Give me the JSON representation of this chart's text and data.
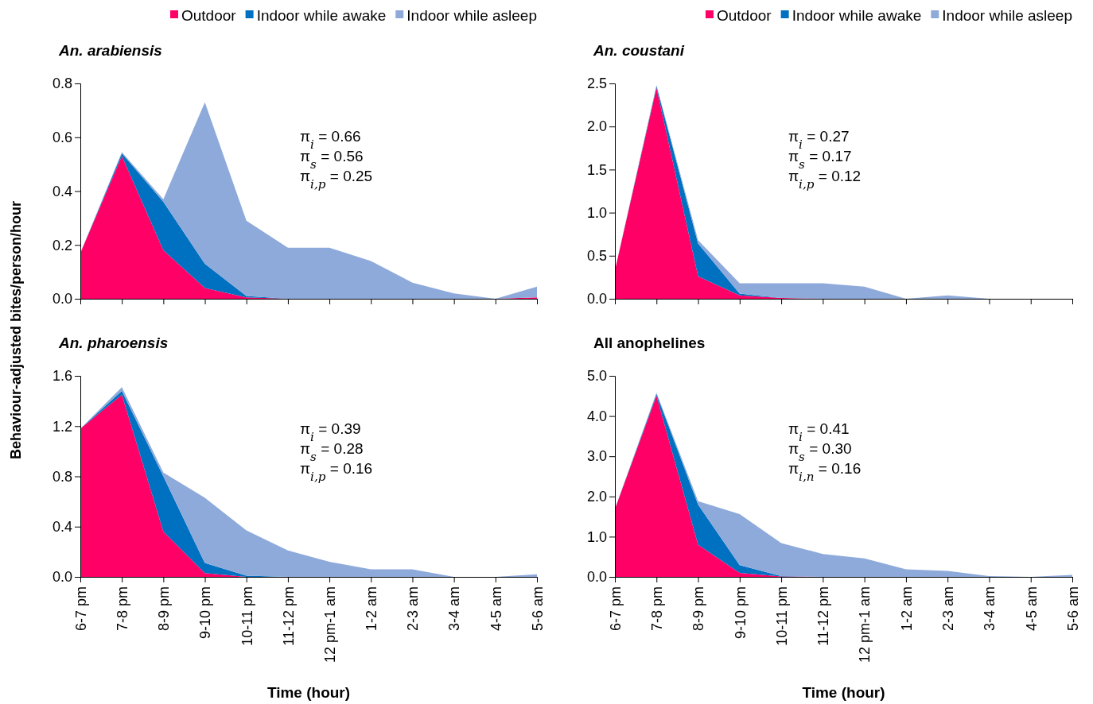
{
  "chart_data": [
    {
      "type": "area",
      "stacked": true,
      "title": "An. arabiensis",
      "ylabel": "Behaviour-adjusted bites/person/hour",
      "categories": [
        null,
        null,
        null,
        null,
        null,
        null,
        null,
        null,
        null,
        null,
        null,
        null
      ],
      "ylim": [
        0,
        0.8
      ],
      "yticks": [
        {
          "value": 0,
          "label": "0.0"
        },
        0.2,
        0.4,
        0.6,
        0.8
      ],
      "legend": "top",
      "annotations": [
        "π$_{i}$ = 0.66",
        "π$_{s}$ = 0.56",
        "π$_{i,p}$ = 0.25"
      ],
      "series": [
        {
          "name": "Outdoor",
          "color": "#ff0066",
          "values": [
            0.17,
            0.53,
            0.18,
            0.04,
            0.005,
            0,
            0,
            0,
            0,
            0,
            0,
            0.005
          ]
        },
        {
          "name": "Indoor while awake",
          "color": "#0070c0",
          "values": [
            0,
            0.01,
            0.18,
            0.09,
            0.005,
            0,
            0,
            0,
            0,
            0,
            0,
            0
          ]
        },
        {
          "name": "Indoor while asleep",
          "color": "#8eaadb",
          "values": [
            0,
            0.005,
            0.01,
            0.6,
            0.28,
            0.19,
            0.19,
            0.14,
            0.06,
            0.02,
            0,
            0.04
          ]
        }
      ]
    },
    {
      "type": "area",
      "stacked": true,
      "title": "An. coustani",
      "categories": [
        null,
        null,
        null,
        null,
        null,
        null,
        null,
        null,
        null,
        null,
        null,
        null
      ],
      "ylim": [
        0,
        2.5
      ],
      "yticks": [
        {
          "value": 0,
          "label": "0.0"
        },
        0.5,
        {
          "value": 1,
          "label": "1.0"
        },
        1.5,
        {
          "value": 2,
          "label": "2.0"
        },
        2.5
      ],
      "legend": "top",
      "annotations": [
        "π$_{i}$ = 0.27",
        "π$_{s}$ = 0.17",
        "π$_{i,p}$ = 0.12"
      ],
      "series": [
        {
          "name": "Outdoor",
          "color": "#ff0066",
          "values": [
            0.33,
            2.45,
            0.26,
            0.04,
            0.01,
            0,
            0,
            0,
            0,
            0,
            0,
            0
          ]
        },
        {
          "name": "Indoor while awake",
          "color": "#0070c0",
          "values": [
            0,
            0.02,
            0.38,
            0.02,
            0,
            0,
            0,
            0,
            0,
            0,
            0,
            0
          ]
        },
        {
          "name": "Indoor while asleep",
          "color": "#8eaadb",
          "values": [
            0,
            0.01,
            0.04,
            0.12,
            0.17,
            0.18,
            0.14,
            0,
            0.04,
            0,
            0,
            0
          ]
        }
      ]
    },
    {
      "type": "area",
      "stacked": true,
      "title": "An. pharoensis",
      "xlabel": "Time (hour)",
      "categories": [
        "6-7 pm",
        "7-8 pm",
        "8-9 pm",
        "9-10 pm",
        "10-11 pm",
        "11-12 pm",
        "12 pm-1 am",
        "1-2 am",
        "2-3 am",
        "3-4 am",
        "4-5 am",
        "5-6 am"
      ],
      "ylim": [
        0,
        1.6
      ],
      "yticks": [
        {
          "value": 0,
          "label": "0.0"
        },
        0.4,
        0.8,
        1.2,
        1.6
      ],
      "annotations": [
        "π$_{i}$ = 0.39",
        "π$_{s}$ = 0.28",
        "π$_{i,p}$ = 0.16"
      ],
      "series": [
        {
          "color": "#ff0066",
          "values": [
            1.18,
            1.45,
            0.36,
            0.03,
            0,
            0,
            0,
            0,
            0,
            0,
            0,
            0
          ]
        },
        {
          "color": "#0070c0",
          "values": [
            0,
            0.03,
            0.44,
            0.08,
            0.01,
            0,
            0,
            0,
            0,
            0,
            0,
            0
          ]
        },
        {
          "color": "#8eaadb",
          "values": [
            0,
            0.03,
            0.03,
            0.52,
            0.36,
            0.21,
            0.12,
            0.06,
            0.06,
            0,
            0,
            0.02
          ]
        }
      ]
    },
    {
      "type": "area",
      "stacked": true,
      "title": "All anophelines",
      "xlabel": "Time (hour)",
      "categories": [
        "6-7 pm",
        "7-8 pm",
        "8-9 pm",
        "9-10 pm",
        "10-11 pm",
        "11-12 pm",
        "12 pm-1 am",
        "1-2 am",
        "2-3 am",
        "3-4 am",
        "4-5 am",
        "5-6 am"
      ],
      "ylim": [
        0,
        5
      ],
      "yticks": [
        {
          "value": 0,
          "label": "0.0"
        },
        {
          "value": 1,
          "label": "1.0"
        },
        {
          "value": 2,
          "label": "2.0"
        },
        {
          "value": 3,
          "label": "3.0"
        },
        {
          "value": 4,
          "label": "4.0"
        },
        {
          "value": 5,
          "label": "5.0"
        }
      ],
      "annotations": [
        "π$_{i}$ = 0.41",
        "π$_{s}$ = 0.30",
        "π$_{i,n}$ = 0.16"
      ],
      "series": [
        {
          "color": "#ff0066",
          "values": [
            1.69,
            4.5,
            0.8,
            0.1,
            0.01,
            0,
            0,
            0,
            0,
            0,
            0,
            0
          ]
        },
        {
          "color": "#0070c0",
          "values": [
            0,
            0.05,
            1.0,
            0.19,
            0.01,
            0,
            0,
            0,
            0,
            0,
            0,
            0
          ]
        },
        {
          "color": "#8eaadb",
          "values": [
            0,
            0.03,
            0.08,
            1.27,
            0.82,
            0.57,
            0.46,
            0.19,
            0.15,
            0.02,
            0,
            0.05
          ]
        }
      ]
    }
  ]
}
